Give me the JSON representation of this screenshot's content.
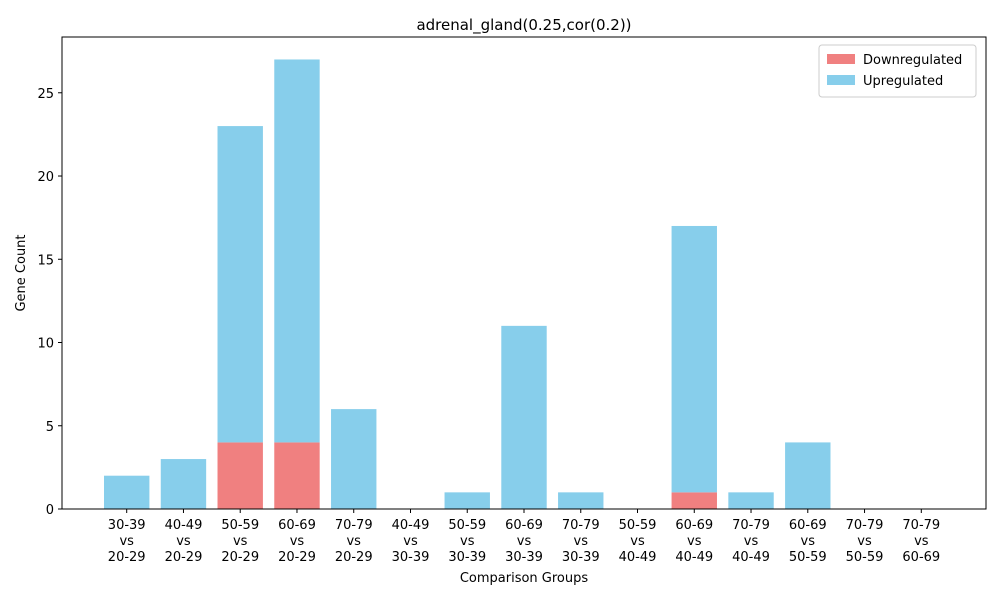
{
  "chart_data": {
    "type": "stacked_bar",
    "title": "adrenal_gland(0.25,cor(0.2))",
    "x_label": "Comparison Groups",
    "y_label": "Gene Count",
    "categories": [
      "30-39\nvs\n20-29",
      "40-49\nvs\n20-29",
      "50-59\nvs\n20-29",
      "60-69\nvs\n20-29",
      "70-79\nvs\n20-29",
      "40-49\nvs\n30-39",
      "50-59\nvs\n30-39",
      "60-69\nvs\n30-39",
      "70-79\nvs\n30-39",
      "50-59\nvs\n40-49",
      "60-69\nvs\n40-49",
      "70-79\nvs\n40-49",
      "60-69\nvs\n50-59",
      "70-79\nvs\n50-59",
      "70-79\nvs\n60-69"
    ],
    "series": [
      {
        "name": "Downregulated",
        "color": "#f08080",
        "values": [
          0,
          0,
          4,
          4,
          0,
          0,
          0,
          0,
          0,
          0,
          1,
          0,
          0,
          0,
          0
        ]
      },
      {
        "name": "Upregulated",
        "color": "#87ceeb",
        "values": [
          2,
          3,
          19,
          23,
          6,
          0,
          1,
          11,
          1,
          0,
          16,
          1,
          4,
          0,
          0
        ]
      }
    ],
    "ylim": [
      0,
      28.35
    ],
    "yticks": [
      0,
      5,
      10,
      15,
      20,
      25
    ],
    "legend": "upper right",
    "grid": false
  }
}
